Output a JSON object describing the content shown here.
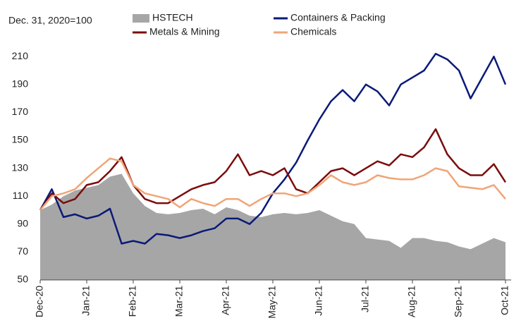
{
  "chart_data": {
    "type": "line",
    "subtitle": "Dec. 31, 2020=100",
    "categories": [
      "Dec-20",
      null,
      null,
      null,
      "Jan-21",
      null,
      null,
      null,
      "Feb-21",
      null,
      null,
      null,
      "Mar-21",
      null,
      null,
      null,
      "Apr-21",
      null,
      null,
      null,
      "May-21",
      null,
      null,
      null,
      "Jun-21",
      null,
      null,
      null,
      "Jul-21",
      null,
      null,
      null,
      "Aug-21",
      null,
      null,
      null,
      "Sep-21",
      null,
      null,
      null,
      "Oct-21"
    ],
    "ylim": [
      50,
      220
    ],
    "yticks": [
      50,
      70,
      90,
      110,
      130,
      150,
      170,
      190,
      210
    ],
    "grid": false,
    "legend": "top",
    "series": [
      {
        "name": "HSTECH",
        "color": "#a6a6a6",
        "style": "area",
        "values": [
          100,
          104,
          110,
          114,
          116,
          118,
          124,
          126,
          112,
          103,
          98,
          97,
          98,
          100,
          101,
          97,
          102,
          100,
          96,
          95,
          97,
          98,
          97,
          98,
          100,
          96,
          92,
          90,
          80,
          79,
          78,
          73,
          80,
          80,
          78,
          77,
          74,
          72,
          76,
          80,
          77
        ]
      },
      {
        "name": "Containers & Packing",
        "color": "#0a1a78",
        "style": "line",
        "values": [
          100,
          115,
          95,
          97,
          94,
          96,
          101,
          76,
          78,
          76,
          83,
          82,
          80,
          82,
          85,
          87,
          94,
          94,
          90,
          98,
          112,
          122,
          134,
          150,
          165,
          178,
          186,
          178,
          190,
          185,
          175,
          190,
          195,
          200,
          212,
          208,
          200,
          180,
          195,
          210,
          190
        ]
      },
      {
        "name": "Metals & Mining",
        "color": "#7b0c0c",
        "style": "line",
        "values": [
          100,
          112,
          105,
          108,
          118,
          120,
          128,
          138,
          118,
          108,
          105,
          105,
          110,
          115,
          118,
          120,
          128,
          140,
          125,
          128,
          125,
          130,
          115,
          112,
          120,
          128,
          130,
          125,
          130,
          135,
          132,
          140,
          138,
          145,
          158,
          140,
          130,
          125,
          125,
          133,
          120
        ]
      },
      {
        "name": "Chemicals",
        "color": "#f0a577",
        "style": "line",
        "values": [
          100,
          110,
          112,
          115,
          123,
          130,
          137,
          135,
          118,
          112,
          110,
          108,
          102,
          108,
          105,
          103,
          108,
          108,
          103,
          108,
          112,
          112,
          110,
          112,
          118,
          125,
          120,
          118,
          120,
          125,
          123,
          122,
          122,
          125,
          130,
          128,
          117,
          116,
          115,
          118,
          108
        ]
      }
    ]
  }
}
